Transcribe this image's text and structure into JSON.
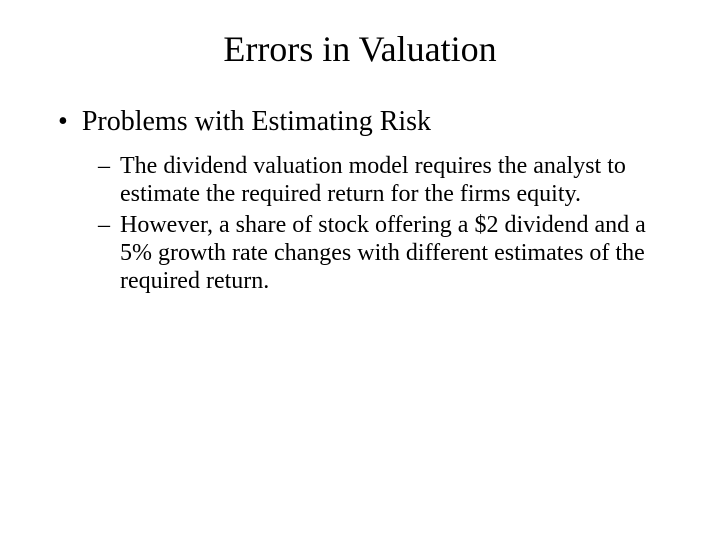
{
  "slide": {
    "title": "Errors in Valuation",
    "title_fontsize": 36,
    "background_color": "#ffffff",
    "text_color": "#000000",
    "font_family": "Times New Roman",
    "bullets": [
      {
        "marker": "•",
        "text": "Problems with Estimating Risk",
        "fontsize": 28,
        "sub_bullets": [
          {
            "marker": "–",
            "text": "The dividend valuation model requires the analyst to estimate the required return for the firms equity.",
            "fontsize": 24
          },
          {
            "marker": "–",
            "text": "However, a share of stock offering a $2 dividend and a 5% growth rate changes with different estimates of the required return.",
            "fontsize": 24
          }
        ]
      }
    ]
  }
}
